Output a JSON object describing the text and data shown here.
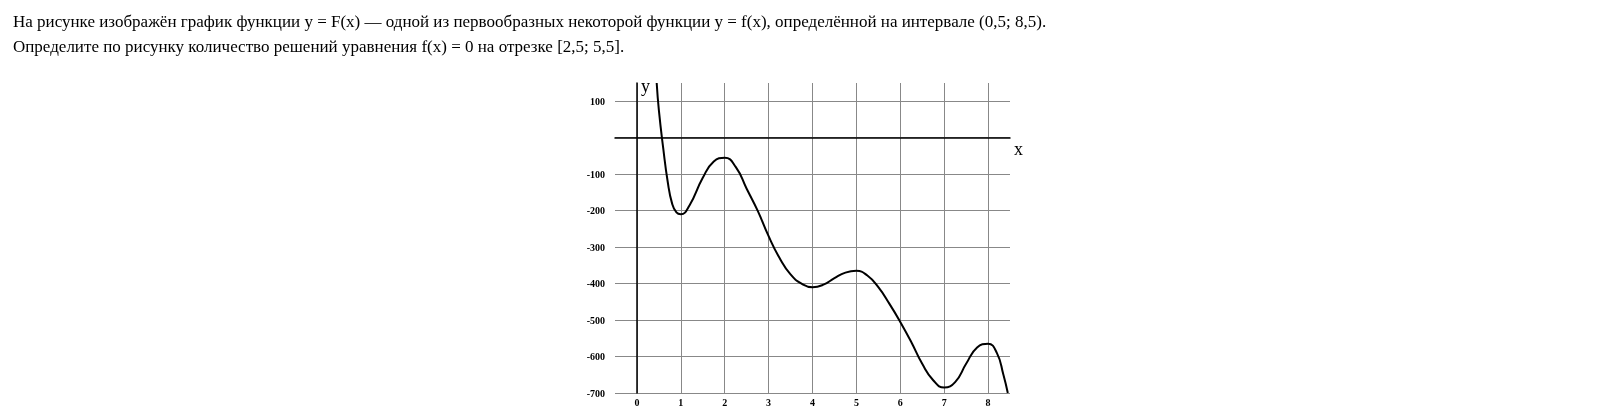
{
  "chart_data": {
    "type": "line",
    "title": "На рисунке изображён график функции y = F(x) — одной из первообразных некоторой функции y = f(x), определённой на интервале (0,5; 8,5).",
    "subtitle": "Определите по рисунку количество решений уравнения f(x) = 0 на отрезке [2,5; 5,5].",
    "xlabel": "x",
    "ylabel": "y",
    "x": [
      0.45,
      0.5,
      0.6,
      0.7,
      0.8,
      0.9,
      1,
      1.2,
      1.5,
      1.75,
      2,
      2.25,
      2.5,
      2.75,
      3,
      3.25,
      3.5,
      3.75,
      4,
      4.25,
      4.5,
      4.75,
      5,
      5.25,
      5.5,
      5.75,
      6,
      6.25,
      6.5,
      6.75,
      7,
      7.25,
      7.5,
      7.75,
      8,
      8.2,
      8.35,
      8.45
    ],
    "series": [
      {
        "color": "#000000",
        "values": [
          150,
          75,
          -30,
          -120,
          -180,
          -205,
          -210,
          -185,
          -110,
          -65,
          -55,
          -80,
          -140,
          -200,
          -270,
          -330,
          -375,
          -400,
          -410,
          -403,
          -385,
          -370,
          -365,
          -378,
          -410,
          -455,
          -505,
          -560,
          -620,
          -665,
          -685,
          -670,
          -620,
          -575,
          -565,
          -590,
          -650,
          -700
        ]
      }
    ],
    "xlim": [
      -0.5,
      8.5
    ],
    "ylim": [
      -700,
      150
    ],
    "xticks": [
      0,
      1,
      2,
      3,
      4,
      5,
      6,
      7,
      8
    ],
    "yticks": [
      -700,
      -600,
      -500,
      -400,
      -300,
      -200,
      -100,
      {
        "value": 0,
        "label": null
      },
      100
    ],
    "grid": true
  }
}
